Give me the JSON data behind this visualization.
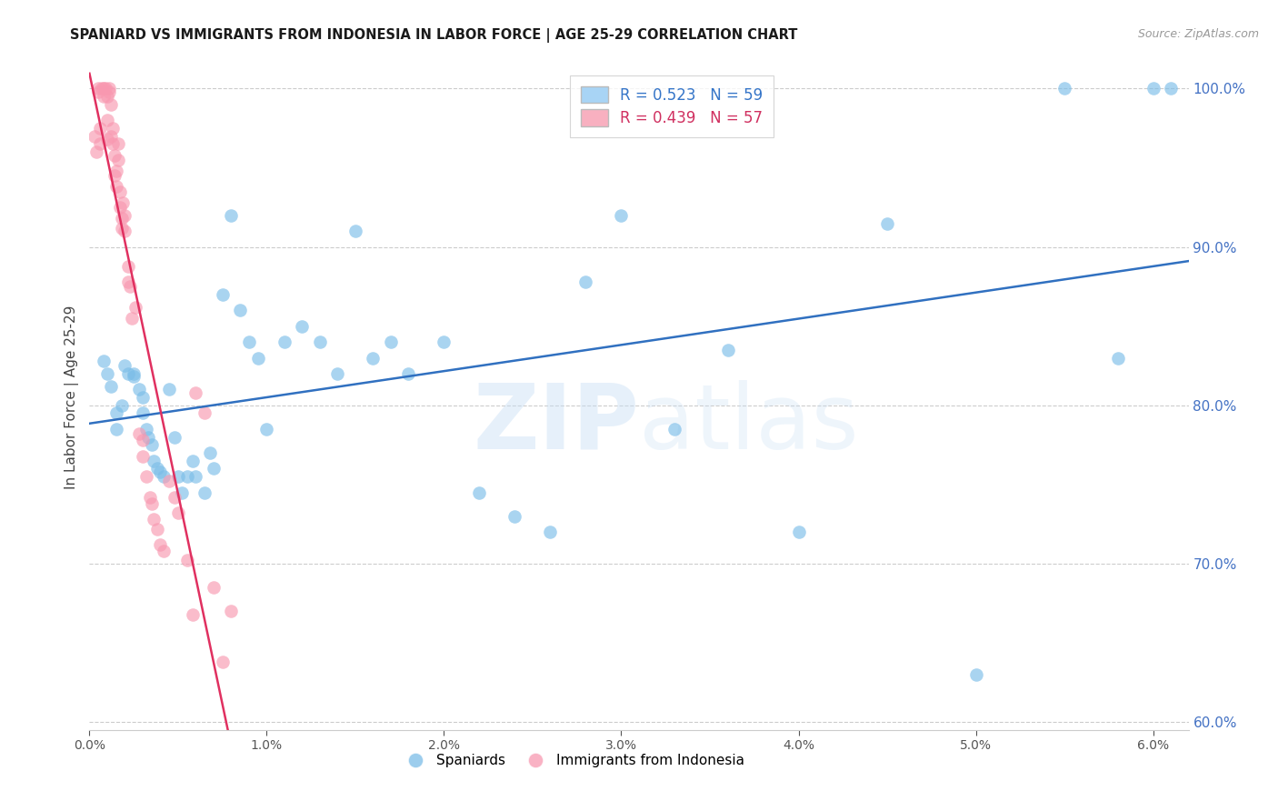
{
  "title": "SPANIARD VS IMMIGRANTS FROM INDONESIA IN LABOR FORCE | AGE 25-29 CORRELATION CHART",
  "source": "Source: ZipAtlas.com",
  "ylabel": "In Labor Force | Age 25-29",
  "blue_R": 0.523,
  "blue_N": 59,
  "pink_R": 0.439,
  "pink_N": 57,
  "blue_color": "#7bbde8",
  "pink_color": "#f898b0",
  "blue_line_color": "#3070c0",
  "pink_line_color": "#e03060",
  "xlim": [
    0.0,
    0.062
  ],
  "ylim": [
    0.595,
    1.015
  ],
  "yticks_right": [
    1.0,
    0.9,
    0.8,
    0.7,
    0.6
  ],
  "xticks": [
    0.0,
    0.01,
    0.02,
    0.03,
    0.04,
    0.05,
    0.06
  ],
  "blue_scatter_x": [
    0.0008,
    0.001,
    0.0012,
    0.0015,
    0.0015,
    0.0018,
    0.002,
    0.0022,
    0.0025,
    0.0025,
    0.0028,
    0.003,
    0.003,
    0.0032,
    0.0033,
    0.0035,
    0.0036,
    0.0038,
    0.004,
    0.0042,
    0.0045,
    0.0048,
    0.005,
    0.0052,
    0.0055,
    0.0058,
    0.006,
    0.0065,
    0.0068,
    0.007,
    0.0075,
    0.008,
    0.0085,
    0.009,
    0.0095,
    0.01,
    0.011,
    0.012,
    0.013,
    0.014,
    0.015,
    0.016,
    0.017,
    0.018,
    0.02,
    0.022,
    0.024,
    0.026,
    0.028,
    0.03,
    0.033,
    0.036,
    0.04,
    0.045,
    0.05,
    0.055,
    0.058,
    0.06,
    0.061
  ],
  "blue_scatter_y": [
    0.828,
    0.82,
    0.812,
    0.795,
    0.785,
    0.8,
    0.825,
    0.82,
    0.82,
    0.818,
    0.81,
    0.805,
    0.795,
    0.785,
    0.78,
    0.775,
    0.765,
    0.76,
    0.758,
    0.755,
    0.81,
    0.78,
    0.755,
    0.745,
    0.755,
    0.765,
    0.755,
    0.745,
    0.77,
    0.76,
    0.87,
    0.92,
    0.86,
    0.84,
    0.83,
    0.785,
    0.84,
    0.85,
    0.84,
    0.82,
    0.91,
    0.83,
    0.84,
    0.82,
    0.84,
    0.745,
    0.73,
    0.72,
    0.878,
    0.92,
    0.785,
    0.835,
    0.72,
    0.915,
    0.63,
    1.0,
    0.83,
    1.0,
    1.0
  ],
  "pink_scatter_x": [
    0.0003,
    0.0004,
    0.0005,
    0.0005,
    0.0006,
    0.0006,
    0.0007,
    0.0008,
    0.0008,
    0.0009,
    0.001,
    0.001,
    0.001,
    0.0011,
    0.0011,
    0.0012,
    0.0012,
    0.0013,
    0.0013,
    0.0014,
    0.0014,
    0.0015,
    0.0015,
    0.0016,
    0.0016,
    0.0017,
    0.0017,
    0.0018,
    0.0018,
    0.0019,
    0.002,
    0.002,
    0.0022,
    0.0022,
    0.0023,
    0.0024,
    0.0026,
    0.0028,
    0.003,
    0.003,
    0.0032,
    0.0034,
    0.0035,
    0.0036,
    0.0038,
    0.004,
    0.0042,
    0.0045,
    0.0048,
    0.005,
    0.0055,
    0.0058,
    0.006,
    0.0065,
    0.007,
    0.0075,
    0.008
  ],
  "pink_scatter_y": [
    0.97,
    0.96,
    1.0,
    0.998,
    0.975,
    0.965,
    1.0,
    1.0,
    0.995,
    1.0,
    0.995,
    0.98,
    0.968,
    1.0,
    0.998,
    0.99,
    0.97,
    0.975,
    0.965,
    0.958,
    0.945,
    0.948,
    0.938,
    0.965,
    0.955,
    0.935,
    0.925,
    0.918,
    0.912,
    0.928,
    0.92,
    0.91,
    0.888,
    0.878,
    0.875,
    0.855,
    0.862,
    0.782,
    0.778,
    0.768,
    0.755,
    0.742,
    0.738,
    0.728,
    0.722,
    0.712,
    0.708,
    0.752,
    0.742,
    0.732,
    0.702,
    0.668,
    0.808,
    0.795,
    0.685,
    0.638,
    0.67
  ],
  "watermark_zip": "ZIP",
  "watermark_atlas": "atlas",
  "background_color": "#ffffff",
  "grid_color": "#cccccc",
  "right_axis_color": "#4472c4"
}
